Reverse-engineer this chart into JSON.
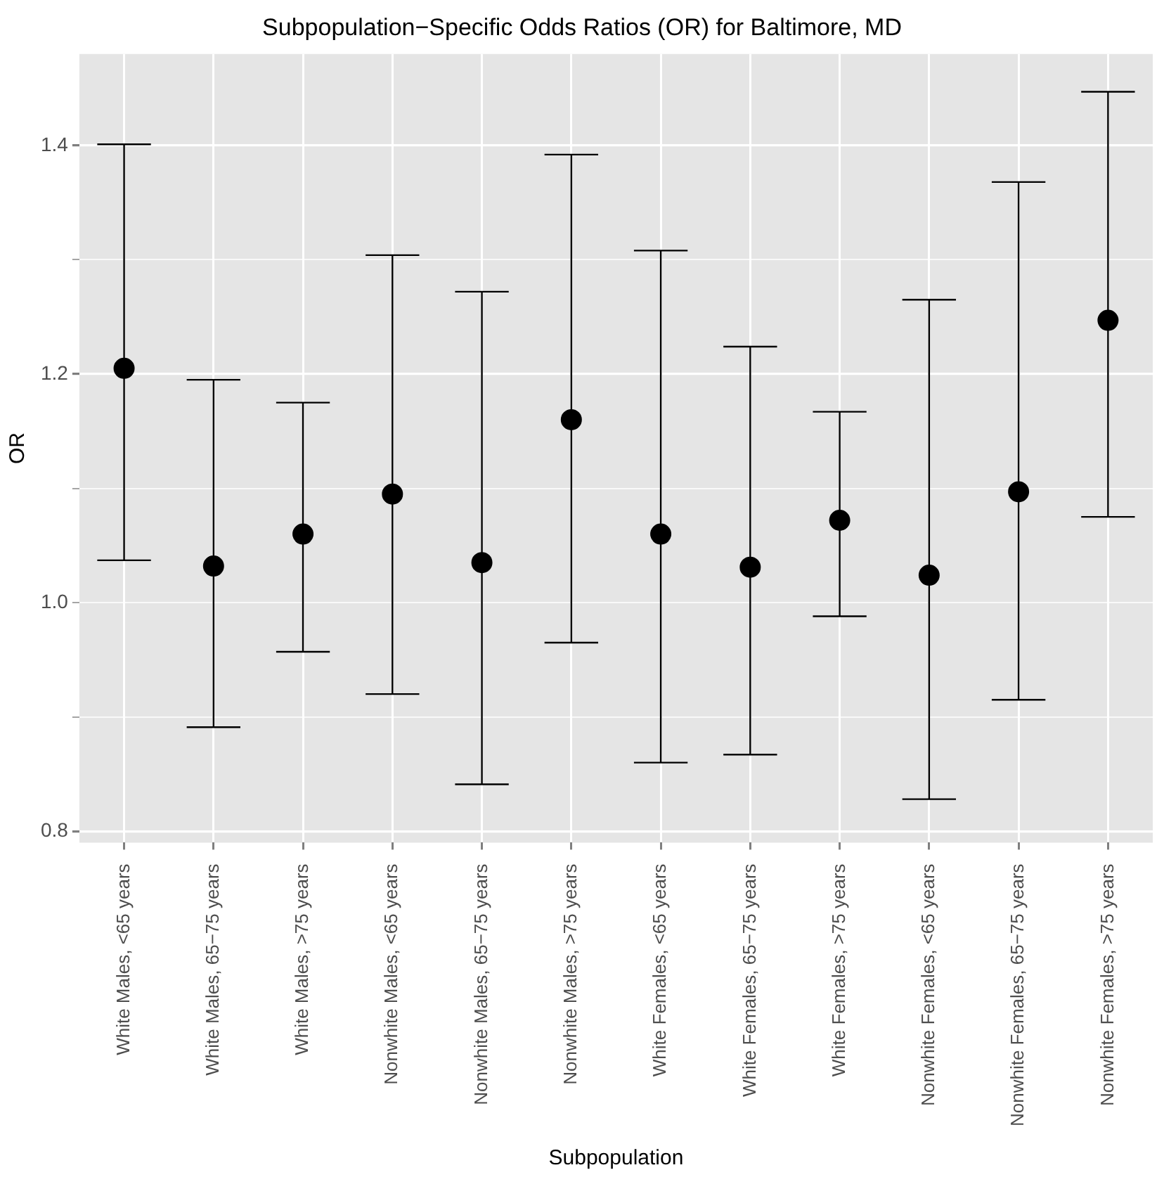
{
  "chart_data": {
    "type": "scatter",
    "title": "Subpopulation−Specific Odds Ratios (OR) for Baltimore, MD",
    "xlabel": "Subpopulation",
    "ylabel": "OR",
    "categories": [
      "White Males, <65 years",
      "White Males, 65−75 years",
      "White Males, >75 years",
      "Nonwhite Males, <65 years",
      "Nonwhite Males, 65−75 years",
      "Nonwhite Males, >75 years",
      "White Females, <65 years",
      "White Females, 65−75 years",
      "White Females, >75 years",
      "Nonwhite Females, <65 years",
      "Nonwhite Females, 65−75 years",
      "Nonwhite Females, >75 years"
    ],
    "values": [
      1.205,
      1.032,
      1.06,
      1.095,
      1.035,
      1.16,
      1.06,
      1.031,
      1.072,
      1.024,
      1.097,
      1.247
    ],
    "errors": [
      [
        1.037,
        1.401
      ],
      [
        0.891,
        1.195
      ],
      [
        0.957,
        1.175
      ],
      [
        0.92,
        1.304
      ],
      [
        0.841,
        1.272
      ],
      [
        0.965,
        1.392
      ],
      [
        0.86,
        1.308
      ],
      [
        0.867,
        1.224
      ],
      [
        0.988,
        1.167
      ],
      [
        0.828,
        1.265
      ],
      [
        0.915,
        1.368
      ],
      [
        1.075,
        1.447
      ]
    ],
    "color": "#000000",
    "marker": "circle",
    "grid": true,
    "ylim": [
      0.79,
      1.48
    ],
    "yticks": [
      0.8,
      {
        "value": 0.9,
        "label": null
      },
      {
        "value": 1,
        "label": "1.0"
      },
      {
        "value": 1.1,
        "label": null
      },
      1.2,
      {
        "value": 1.3,
        "label": null
      },
      1.4
    ]
  }
}
